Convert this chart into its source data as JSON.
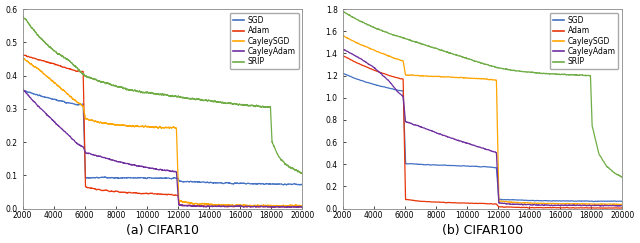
{
  "colors": {
    "SGD": "#4472C4",
    "Adam": "#E8360A",
    "CayleySGD": "#FFA500",
    "CayleyAdam": "#7030A0",
    "SRIP": "#70AD47"
  },
  "legend_labels": [
    "SGD",
    "Adam",
    "CayleySGD",
    "CayleyAdam",
    "SRIP"
  ],
  "xlabel_left": "(a) CIFAR10",
  "xlabel_right": "(b) CIFAR100",
  "xlim": [
    2000,
    20000
  ],
  "ylim_left": [
    0,
    0.6
  ],
  "ylim_right": [
    0,
    1.8
  ],
  "yticks_left": [
    0,
    0.1,
    0.2,
    0.3,
    0.4,
    0.5,
    0.6
  ],
  "yticks_right": [
    0,
    0.2,
    0.4,
    0.6,
    0.8,
    1.0,
    1.2,
    1.4,
    1.6,
    1.8
  ],
  "xticks": [
    2000,
    4000,
    6000,
    8000,
    10000,
    12000,
    14000,
    16000,
    18000,
    20000
  ],
  "line_width": 0.9,
  "background_color": "#ffffff"
}
